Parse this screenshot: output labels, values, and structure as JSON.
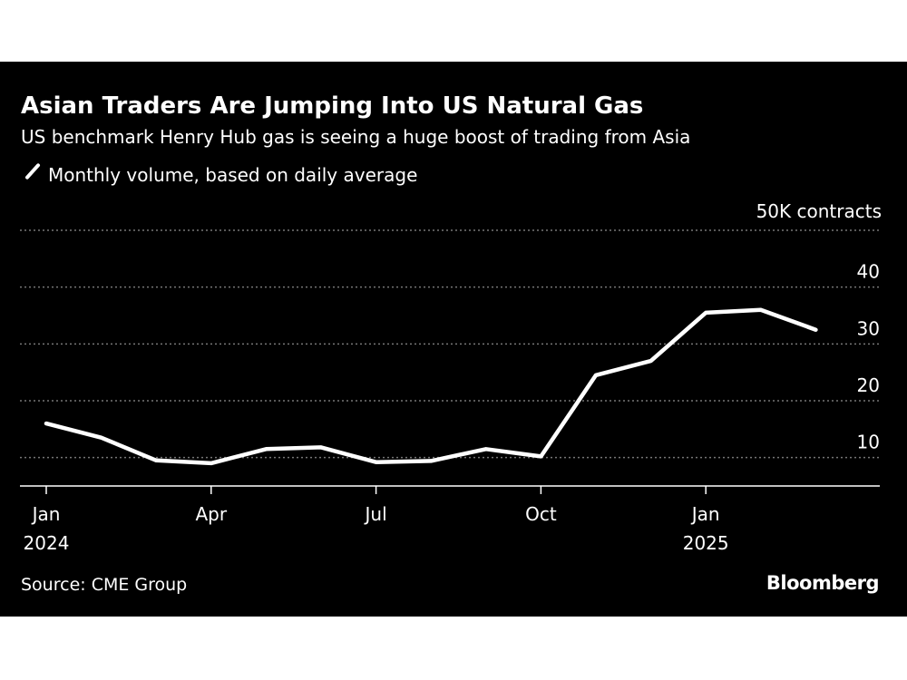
{
  "header": {
    "title": "Asian Traders Are Jumping Into US Natural Gas",
    "subtitle": "US benchmark Henry Hub gas is seeing a huge boost of trading from Asia"
  },
  "footer": {
    "source": "Source: CME Group",
    "brand": "Bloomberg"
  },
  "colors": {
    "background": "#000000",
    "line": "#ffffff",
    "grid": "#777777",
    "page": "#ffffff"
  },
  "chart_data": {
    "type": "line",
    "title": "Asian Traders Are Jumping Into US Natural Gas",
    "subtitle": "US benchmark Henry Hub gas is seeing a huge boost of trading from Asia",
    "unit_label": "50K contracts",
    "ylim": [
      5,
      50
    ],
    "yticks": [
      10,
      20,
      30,
      40
    ],
    "grid": "horizontal dotted",
    "legend_placement": "top-left",
    "x_tick_labels": [
      {
        "month": "Jan",
        "year": "2024",
        "index": 0
      },
      {
        "month": "Apr",
        "year": "",
        "index": 3
      },
      {
        "month": "Jul",
        "year": "",
        "index": 6
      },
      {
        "month": "Oct",
        "year": "",
        "index": 9
      },
      {
        "month": "Jan",
        "year": "2025",
        "index": 12
      }
    ],
    "series": [
      {
        "name": "Monthly volume, based on daily average",
        "x": [
          "2024-01",
          "2024-02",
          "2024-03",
          "2024-04",
          "2024-05",
          "2024-06",
          "2024-07",
          "2024-08",
          "2024-09",
          "2024-10",
          "2024-11",
          "2024-12",
          "2025-01",
          "2025-02",
          "2025-03"
        ],
        "values": [
          16,
          13.5,
          9.5,
          9,
          11.5,
          11.8,
          9.2,
          9.4,
          11.5,
          10.2,
          24.5,
          27,
          35.5,
          36,
          32.5
        ]
      }
    ]
  }
}
